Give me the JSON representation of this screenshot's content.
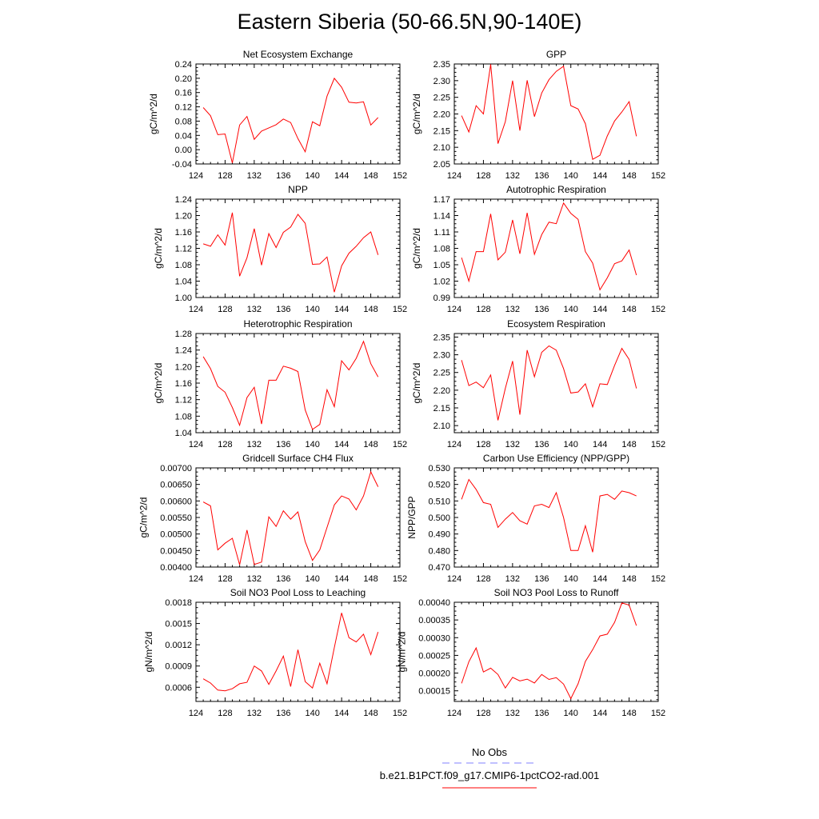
{
  "title": "Eastern Siberia (50-66.5N,90-140E)",
  "legend": {
    "entries": [
      {
        "label": "No Obs",
        "color": "#8080ff",
        "dash": true
      },
      {
        "label": "b.e21.B1PCT.f09_g17.CMIP6-1pctCO2-rad.001",
        "color": "#ff0000",
        "dash": false
      }
    ]
  },
  "chart_data": [
    {
      "type": "line",
      "title": "Net Ecosystem Exchange",
      "ylabel": "gC/m^2/d",
      "xlim": [
        124,
        152
      ],
      "ylim": [
        -0.04,
        0.24
      ],
      "xticks": [
        124,
        128,
        132,
        136,
        140,
        144,
        148,
        152
      ],
      "yticks": [
        -0.04,
        0.0,
        0.04,
        0.08,
        0.12,
        0.16,
        0.2,
        0.24
      ],
      "yticklabels": [
        "-0.04",
        "0.00",
        "0.04",
        "0.08",
        "0.12",
        "0.16",
        "0.20",
        "0.24"
      ],
      "x": [
        125,
        126,
        127,
        128,
        129,
        130,
        131,
        132,
        133,
        134,
        135,
        136,
        137,
        138,
        139,
        140,
        141,
        142,
        143,
        144,
        145,
        146,
        147,
        148,
        149
      ],
      "series": [
        {
          "color": "#ff0000",
          "values": [
            0.118,
            0.095,
            0.042,
            0.044,
            -0.037,
            0.069,
            0.093,
            0.029,
            0.052,
            0.061,
            0.07,
            0.086,
            0.076,
            0.031,
            -0.006,
            0.078,
            0.067,
            0.15,
            0.2,
            0.175,
            0.133,
            0.131,
            0.134,
            0.069,
            0.09
          ]
        }
      ]
    },
    {
      "type": "line",
      "title": "GPP",
      "ylabel": "gC/m^2/d",
      "xlim": [
        124,
        152
      ],
      "ylim": [
        2.05,
        2.35
      ],
      "xticks": [
        124,
        128,
        132,
        136,
        140,
        144,
        148,
        152
      ],
      "yticks": [
        2.05,
        2.1,
        2.15,
        2.2,
        2.25,
        2.3,
        2.35
      ],
      "yticklabels": [
        "2.05",
        "2.10",
        "2.15",
        "2.20",
        "2.25",
        "2.30",
        "2.35"
      ],
      "x": [
        125,
        126,
        127,
        128,
        129,
        130,
        131,
        132,
        133,
        134,
        135,
        136,
        137,
        138,
        139,
        140,
        141,
        142,
        143,
        144,
        145,
        146,
        147,
        148,
        149
      ],
      "series": [
        {
          "color": "#ff0000",
          "values": [
            2.195,
            2.146,
            2.225,
            2.2,
            2.349,
            2.111,
            2.177,
            2.3,
            2.15,
            2.301,
            2.192,
            2.263,
            2.303,
            2.328,
            2.343,
            2.225,
            2.215,
            2.171,
            2.064,
            2.076,
            2.134,
            2.179,
            2.206,
            2.237,
            2.133
          ]
        }
      ]
    },
    {
      "type": "line",
      "title": "NPP",
      "ylabel": "gC/m^2/d",
      "xlim": [
        124,
        152
      ],
      "ylim": [
        1.0,
        1.24
      ],
      "xticks": [
        124,
        128,
        132,
        136,
        140,
        144,
        148,
        152
      ],
      "yticks": [
        1.0,
        1.04,
        1.08,
        1.12,
        1.16,
        1.2,
        1.24
      ],
      "yticklabels": [
        "1.00",
        "1.04",
        "1.08",
        "1.12",
        "1.16",
        "1.20",
        "1.24"
      ],
      "x": [
        125,
        126,
        127,
        128,
        129,
        130,
        131,
        132,
        133,
        134,
        135,
        136,
        137,
        138,
        139,
        140,
        141,
        142,
        143,
        144,
        145,
        146,
        147,
        148,
        149
      ],
      "series": [
        {
          "color": "#ff0000",
          "values": [
            1.131,
            1.125,
            1.153,
            1.128,
            1.207,
            1.052,
            1.097,
            1.168,
            1.079,
            1.156,
            1.122,
            1.159,
            1.172,
            1.203,
            1.181,
            1.081,
            1.082,
            1.099,
            1.013,
            1.077,
            1.108,
            1.125,
            1.146,
            1.16,
            1.104
          ]
        }
      ]
    },
    {
      "type": "line",
      "title": "Autotrophic Respiration",
      "ylabel": "gC/m^2/d",
      "xlim": [
        124,
        152
      ],
      "ylim": [
        0.99,
        1.17
      ],
      "xticks": [
        124,
        128,
        132,
        136,
        140,
        144,
        148,
        152
      ],
      "yticks": [
        0.99,
        1.02,
        1.05,
        1.08,
        1.11,
        1.14,
        1.17
      ],
      "yticklabels": [
        "0.99",
        "1.02",
        "1.05",
        "1.08",
        "1.11",
        "1.14",
        "1.17"
      ],
      "x": [
        125,
        126,
        127,
        128,
        129,
        130,
        131,
        132,
        133,
        134,
        135,
        136,
        137,
        138,
        139,
        140,
        141,
        142,
        143,
        144,
        145,
        146,
        147,
        148,
        149
      ],
      "series": [
        {
          "color": "#ff0000",
          "values": [
            1.063,
            1.02,
            1.074,
            1.074,
            1.143,
            1.059,
            1.073,
            1.132,
            1.07,
            1.145,
            1.069,
            1.105,
            1.128,
            1.125,
            1.163,
            1.144,
            1.133,
            1.074,
            1.053,
            1.004,
            1.026,
            1.052,
            1.057,
            1.077,
            1.031
          ]
        }
      ]
    },
    {
      "type": "line",
      "title": "Heterotrophic Respiration",
      "ylabel": "gC/m^2/d",
      "xlim": [
        124,
        152
      ],
      "ylim": [
        1.04,
        1.28
      ],
      "xticks": [
        124,
        128,
        132,
        136,
        140,
        144,
        148,
        152
      ],
      "yticks": [
        1.04,
        1.08,
        1.12,
        1.16,
        1.2,
        1.24,
        1.28
      ],
      "yticklabels": [
        "1.04",
        "1.08",
        "1.12",
        "1.16",
        "1.20",
        "1.24",
        "1.28"
      ],
      "x": [
        125,
        126,
        127,
        128,
        129,
        130,
        131,
        132,
        133,
        134,
        135,
        136,
        137,
        138,
        139,
        140,
        141,
        142,
        143,
        144,
        145,
        146,
        147,
        148,
        149
      ],
      "series": [
        {
          "color": "#ff0000",
          "values": [
            1.224,
            1.195,
            1.152,
            1.138,
            1.101,
            1.058,
            1.125,
            1.15,
            1.061,
            1.167,
            1.167,
            1.201,
            1.196,
            1.188,
            1.095,
            1.048,
            1.06,
            1.144,
            1.103,
            1.214,
            1.192,
            1.22,
            1.261,
            1.207,
            1.175
          ]
        }
      ]
    },
    {
      "type": "line",
      "title": "Ecosystem Respiration",
      "ylabel": "gC/m^2/d",
      "xlim": [
        124,
        152
      ],
      "ylim": [
        2.08,
        2.36
      ],
      "xticks": [
        124,
        128,
        132,
        136,
        140,
        144,
        148,
        152
      ],
      "yticks": [
        2.1,
        2.15,
        2.2,
        2.25,
        2.3,
        2.35
      ],
      "yticklabels": [
        "2.10",
        "2.15",
        "2.20",
        "2.25",
        "2.30",
        "2.35"
      ],
      "x": [
        125,
        126,
        127,
        128,
        129,
        130,
        131,
        132,
        133,
        134,
        135,
        136,
        137,
        138,
        139,
        140,
        141,
        142,
        143,
        144,
        145,
        146,
        147,
        148,
        149
      ],
      "series": [
        {
          "color": "#ff0000",
          "values": [
            2.285,
            2.213,
            2.223,
            2.207,
            2.243,
            2.115,
            2.205,
            2.282,
            2.131,
            2.313,
            2.238,
            2.307,
            2.325,
            2.313,
            2.261,
            2.192,
            2.195,
            2.218,
            2.153,
            2.218,
            2.216,
            2.27,
            2.318,
            2.287,
            2.205
          ]
        }
      ]
    },
    {
      "type": "line",
      "title": "Gridcell Surface CH4 Flux",
      "ylabel": "gC/m^2/d",
      "xlim": [
        124,
        152
      ],
      "ylim": [
        0.004,
        0.007
      ],
      "xticks": [
        124,
        128,
        132,
        136,
        140,
        144,
        148,
        152
      ],
      "yticks": [
        0.004,
        0.0045,
        0.005,
        0.0055,
        0.006,
        0.0065,
        0.007
      ],
      "yticklabels": [
        "0.00400",
        "0.00450",
        "0.00500",
        "0.00550",
        "0.00600",
        "0.00650",
        "0.00700"
      ],
      "x": [
        125,
        126,
        127,
        128,
        129,
        130,
        131,
        132,
        133,
        134,
        135,
        136,
        137,
        138,
        139,
        140,
        141,
        142,
        143,
        144,
        145,
        146,
        147,
        148,
        149
      ],
      "series": [
        {
          "color": "#ff0000",
          "values": [
            0.00597,
            0.00585,
            0.00452,
            0.00472,
            0.00487,
            0.00407,
            0.00512,
            0.00408,
            0.00415,
            0.00552,
            0.00523,
            0.0057,
            0.00545,
            0.00567,
            0.00477,
            0.0042,
            0.00452,
            0.0052,
            0.00588,
            0.00615,
            0.00606,
            0.00573,
            0.00615,
            0.00688,
            0.00643
          ]
        }
      ]
    },
    {
      "type": "line",
      "title": "Carbon Use Efficiency (NPP/GPP)",
      "ylabel": "NPP/GPP",
      "xlim": [
        124,
        152
      ],
      "ylim": [
        0.47,
        0.53
      ],
      "xticks": [
        124,
        128,
        132,
        136,
        140,
        144,
        148,
        152
      ],
      "yticks": [
        0.47,
        0.48,
        0.49,
        0.5,
        0.51,
        0.52,
        0.53
      ],
      "yticklabels": [
        "0.470",
        "0.480",
        "0.490",
        "0.500",
        "0.510",
        "0.520",
        "0.530"
      ],
      "x": [
        125,
        126,
        127,
        128,
        129,
        130,
        131,
        132,
        133,
        134,
        135,
        136,
        137,
        138,
        139,
        140,
        141,
        142,
        143,
        144,
        145,
        146,
        147,
        148,
        149
      ],
      "series": [
        {
          "color": "#ff0000",
          "values": [
            0.511,
            0.523,
            0.517,
            0.509,
            0.508,
            0.494,
            0.499,
            0.503,
            0.498,
            0.496,
            0.507,
            0.508,
            0.506,
            0.515,
            0.5,
            0.48,
            0.48,
            0.495,
            0.479,
            0.513,
            0.514,
            0.511,
            0.516,
            0.515,
            0.513
          ]
        }
      ]
    },
    {
      "type": "line",
      "title": "Soil NO3 Pool Loss to Leaching",
      "ylabel": "gN/m^2/d",
      "xlim": [
        124,
        152
      ],
      "ylim": [
        0.0004,
        0.0018
      ],
      "xticks": [
        124,
        128,
        132,
        136,
        140,
        144,
        148,
        152
      ],
      "yticks": [
        0.0006,
        0.0009,
        0.0012,
        0.0015,
        0.0018
      ],
      "yticklabels": [
        "0.0006",
        "0.0009",
        "0.0012",
        "0.0015",
        "0.0018"
      ],
      "x": [
        125,
        126,
        127,
        128,
        129,
        130,
        131,
        132,
        133,
        134,
        135,
        136,
        137,
        138,
        139,
        140,
        141,
        142,
        143,
        144,
        145,
        146,
        147,
        148,
        149
      ],
      "series": [
        {
          "color": "#ff0000",
          "values": [
            0.00072,
            0.00066,
            0.00056,
            0.00055,
            0.00058,
            0.00065,
            0.00067,
            0.0009,
            0.00083,
            0.00064,
            0.00083,
            0.00104,
            0.00061,
            0.00113,
            0.00068,
            0.00059,
            0.00094,
            0.00065,
            0.00116,
            0.00165,
            0.0013,
            0.00124,
            0.00135,
            0.00106,
            0.00138
          ]
        }
      ]
    },
    {
      "type": "line",
      "title": "Soil NO3 Pool Loss to Runoff",
      "ylabel": "gN/m^2/d",
      "xlim": [
        124,
        152
      ],
      "ylim": [
        0.00012,
        0.0004
      ],
      "xticks": [
        124,
        128,
        132,
        136,
        140,
        144,
        148,
        152
      ],
      "yticks": [
        0.00015,
        0.0002,
        0.00025,
        0.0003,
        0.00035,
        0.0004
      ],
      "yticklabels": [
        "0.00015",
        "0.00020",
        "0.00025",
        "0.00030",
        "0.00035",
        "0.00040"
      ],
      "x": [
        125,
        126,
        127,
        128,
        129,
        130,
        131,
        132,
        133,
        134,
        135,
        136,
        137,
        138,
        139,
        140,
        141,
        142,
        143,
        144,
        145,
        146,
        147,
        148,
        149
      ],
      "series": [
        {
          "color": "#ff0000",
          "values": [
            0.000171,
            0.000232,
            0.000271,
            0.000203,
            0.000214,
            0.000196,
            0.000158,
            0.000188,
            0.000178,
            0.000183,
            0.000172,
            0.000196,
            0.000182,
            0.000187,
            0.000169,
            0.000128,
            0.00017,
            0.000233,
            0.000266,
            0.000305,
            0.00031,
            0.000343,
            0.000398,
            0.000392,
            0.000334
          ]
        }
      ]
    }
  ]
}
